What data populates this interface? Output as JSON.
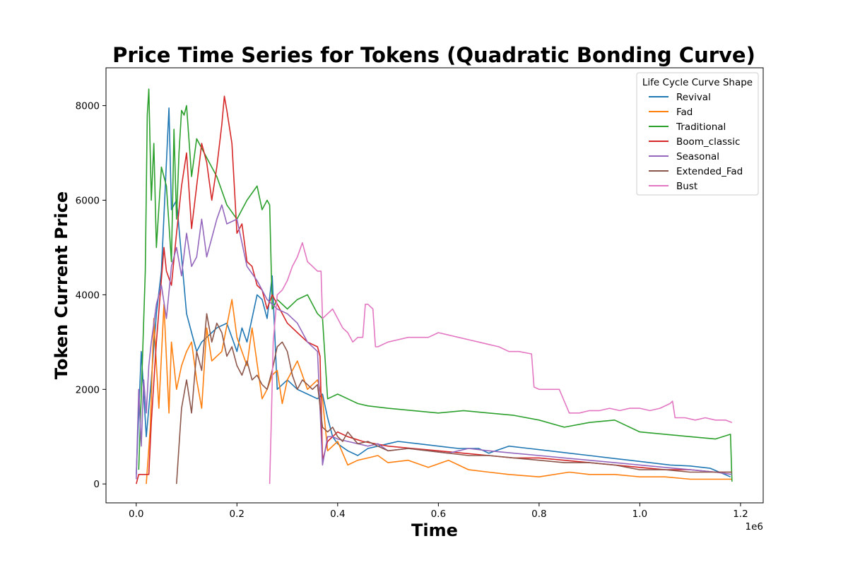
{
  "chart_data": {
    "type": "line",
    "title": "Price Time Series for Tokens (Quadratic Bonding Curve)",
    "xlabel": "Time",
    "ylabel": "Token Current Price",
    "x_offset_text": "1e6",
    "xlim": [
      -60000,
      1245000
    ],
    "ylim": [
      -400,
      8800
    ],
    "xticks": [
      0,
      200000,
      400000,
      600000,
      800000,
      1000000,
      1200000
    ],
    "xtick_labels": [
      "0.0",
      "0.2",
      "0.4",
      "0.6",
      "0.8",
      "1.0",
      "1.2"
    ],
    "yticks": [
      0,
      2000,
      4000,
      6000,
      8000
    ],
    "ytick_labels": [
      "0",
      "2000",
      "4000",
      "6000",
      "8000"
    ],
    "grid": false,
    "legend": {
      "title": "Life Cycle Curve Shape",
      "placement": "top-right"
    },
    "series": [
      {
        "name": "Revival",
        "color": "#1f77b4",
        "x": [
          0,
          10000,
          20000,
          30000,
          40000,
          50000,
          60000,
          65000,
          70000,
          80000,
          90000,
          100000,
          110000,
          120000,
          130000,
          150000,
          160000,
          180000,
          200000,
          210000,
          220000,
          240000,
          250000,
          260000,
          270000,
          280000,
          300000,
          320000,
          340000,
          360000,
          370000,
          380000,
          390000,
          400000,
          420000,
          440000,
          460000,
          480000,
          500000,
          520000,
          560000,
          600000,
          640000,
          680000,
          700000,
          740000,
          780000,
          820000,
          860000,
          900000,
          940000,
          980000,
          1020000,
          1060000,
          1100000,
          1140000,
          1180000
        ],
        "y": [
          200,
          2800,
          1000,
          2200,
          3600,
          4500,
          6800,
          7950,
          5800,
          6000,
          4800,
          3600,
          3200,
          2800,
          3000,
          3200,
          3300,
          3400,
          2800,
          3300,
          3000,
          4000,
          3900,
          3500,
          4400,
          2000,
          2200,
          2000,
          1900,
          1800,
          1900,
          1400,
          1000,
          850,
          700,
          600,
          750,
          800,
          850,
          900,
          850,
          800,
          750,
          750,
          650,
          800,
          750,
          700,
          650,
          600,
          550,
          500,
          450,
          400,
          380,
          330,
          150
        ]
      },
      {
        "name": "Fad",
        "color": "#ff7f0e",
        "x": [
          20000,
          28000,
          35000,
          45000,
          55000,
          65000,
          70000,
          80000,
          90000,
          100000,
          110000,
          120000,
          130000,
          140000,
          150000,
          170000,
          190000,
          200000,
          220000,
          230000,
          250000,
          260000,
          270000,
          280000,
          290000,
          300000,
          320000,
          340000,
          360000,
          370000,
          380000,
          400000,
          420000,
          440000,
          460000,
          480000,
          500000,
          540000,
          580000,
          620000,
          660000,
          700000,
          740000,
          800000,
          860000,
          900000,
          950000,
          1000000,
          1050000,
          1100000,
          1150000,
          1183000
        ],
        "y": [
          0,
          1200,
          3500,
          1600,
          3800,
          1500,
          3000,
          2000,
          2500,
          2800,
          3000,
          2200,
          1600,
          3300,
          2600,
          2800,
          3900,
          3100,
          2500,
          3300,
          1800,
          2000,
          2300,
          2400,
          1700,
          2200,
          2600,
          2000,
          2200,
          1800,
          700,
          900,
          400,
          500,
          550,
          600,
          450,
          500,
          350,
          500,
          300,
          250,
          200,
          150,
          250,
          200,
          200,
          150,
          150,
          100,
          100,
          100
        ]
      },
      {
        "name": "Traditional",
        "color": "#2ca02c",
        "x": [
          5000,
          12000,
          18000,
          22000,
          25000,
          30000,
          35000,
          40000,
          50000,
          60000,
          70000,
          75000,
          80000,
          85000,
          90000,
          95000,
          100000,
          110000,
          120000,
          140000,
          160000,
          180000,
          200000,
          220000,
          240000,
          250000,
          260000,
          265000,
          270000,
          280000,
          300000,
          320000,
          340000,
          360000,
          370000,
          380000,
          400000,
          420000,
          440000,
          460000,
          500000,
          550000,
          600000,
          650000,
          700000,
          750000,
          800000,
          850000,
          900000,
          950000,
          1000000,
          1050000,
          1100000,
          1150000,
          1180000,
          1183000
        ],
        "y": [
          300,
          2500,
          4500,
          7800,
          8350,
          6000,
          7200,
          5000,
          6700,
          6300,
          4700,
          7500,
          5600,
          7000,
          7900,
          7800,
          8000,
          6500,
          7300,
          6900,
          6500,
          5900,
          5600,
          6000,
          6300,
          5800,
          6000,
          5900,
          3700,
          3900,
          3700,
          3900,
          4000,
          3600,
          3500,
          1800,
          1900,
          1800,
          1700,
          1650,
          1600,
          1550,
          1500,
          1550,
          1500,
          1450,
          1350,
          1200,
          1300,
          1350,
          1100,
          1050,
          1000,
          950,
          1050,
          50
        ]
      },
      {
        "name": "Boom_classic",
        "color": "#d62728",
        "x": [
          0,
          5000,
          25000,
          30000,
          40000,
          55000,
          60000,
          70000,
          80000,
          90000,
          100000,
          110000,
          120000,
          130000,
          140000,
          150000,
          160000,
          170000,
          175000,
          180000,
          190000,
          200000,
          210000,
          220000,
          230000,
          240000,
          250000,
          260000,
          270000,
          280000,
          300000,
          320000,
          340000,
          360000,
          365000,
          370000,
          380000,
          400000,
          420000,
          450000,
          500000,
          550000,
          600000,
          650000,
          700000,
          750000,
          800000,
          850000,
          900000,
          950000,
          1000000,
          1050000,
          1100000,
          1150000,
          1183000
        ],
        "y": [
          0,
          200,
          200,
          1300,
          3000,
          5000,
          4500,
          4200,
          5300,
          6300,
          7000,
          5400,
          6300,
          7200,
          6800,
          6000,
          6700,
          7600,
          8200,
          7900,
          7200,
          5300,
          5500,
          4700,
          4600,
          4200,
          4100,
          3700,
          4000,
          3800,
          3400,
          3200,
          3000,
          2900,
          2700,
          500,
          900,
          1100,
          1000,
          900,
          800,
          750,
          700,
          650,
          600,
          550,
          550,
          500,
          450,
          400,
          350,
          300,
          300,
          250,
          250
        ]
      },
      {
        "name": "Seasonal",
        "color": "#9467bd",
        "x": [
          0,
          5000,
          10000,
          15000,
          20000,
          25000,
          30000,
          40000,
          50000,
          60000,
          70000,
          80000,
          90000,
          100000,
          110000,
          120000,
          130000,
          140000,
          150000,
          160000,
          170000,
          180000,
          200000,
          220000,
          240000,
          260000,
          280000,
          300000,
          320000,
          340000,
          360000,
          370000,
          380000,
          390000,
          400000,
          420000,
          440000,
          460000,
          480000,
          500000,
          540000,
          580000,
          620000,
          660000,
          700000,
          750000,
          800000,
          850000,
          900000,
          950000,
          1000000,
          1050000,
          1100000,
          1150000,
          1183000
        ],
        "y": [
          100,
          2000,
          800,
          2200,
          1500,
          2500,
          3000,
          3800,
          4200,
          3500,
          4600,
          5000,
          4400,
          5300,
          4600,
          4800,
          5600,
          4800,
          5200,
          5600,
          5900,
          5500,
          5600,
          4600,
          4300,
          3900,
          3700,
          3600,
          3400,
          3000,
          2800,
          400,
          1000,
          1000,
          950,
          900,
          850,
          800,
          850,
          700,
          750,
          700,
          650,
          750,
          700,
          650,
          600,
          550,
          500,
          450,
          400,
          350,
          300,
          250,
          200
        ]
      },
      {
        "name": "Extended_Fad",
        "color": "#8c564b",
        "x": [
          80000,
          85000,
          90000,
          100000,
          110000,
          120000,
          130000,
          140000,
          150000,
          160000,
          170000,
          180000,
          190000,
          200000,
          210000,
          220000,
          230000,
          240000,
          250000,
          260000,
          270000,
          280000,
          290000,
          300000,
          310000,
          320000,
          330000,
          340000,
          350000,
          360000,
          370000,
          380000,
          390000,
          400000,
          410000,
          420000,
          440000,
          460000,
          480000,
          500000,
          540000,
          580000,
          620000,
          660000,
          700000,
          750000,
          800000,
          850000,
          900000,
          950000,
          1000000,
          1050000,
          1100000,
          1150000,
          1183000
        ],
        "y": [
          0,
          800,
          1600,
          2200,
          1500,
          2800,
          2400,
          3600,
          3000,
          3400,
          3200,
          2700,
          2900,
          2500,
          2300,
          2600,
          2200,
          2300,
          2100,
          2000,
          2400,
          2900,
          3000,
          2800,
          2300,
          2000,
          2200,
          2100,
          2000,
          2100,
          1200,
          1100,
          1200,
          1000,
          900,
          1100,
          850,
          900,
          800,
          700,
          750,
          700,
          650,
          600,
          600,
          550,
          500,
          450,
          450,
          400,
          300,
          300,
          250,
          250,
          250
        ]
      },
      {
        "name": "Bust",
        "color": "#e377c2",
        "x": [
          265000,
          268000,
          272000,
          280000,
          290000,
          300000,
          310000,
          320000,
          330000,
          340000,
          350000,
          360000,
          367000,
          370000,
          380000,
          390000,
          400000,
          410000,
          420000,
          430000,
          440000,
          450000,
          455000,
          460000,
          470000,
          475000,
          480000,
          500000,
          520000,
          540000,
          560000,
          580000,
          600000,
          620000,
          640000,
          660000,
          680000,
          700000,
          720000,
          740000,
          760000,
          785000,
          790000,
          800000,
          820000,
          840000,
          860000,
          880000,
          900000,
          920000,
          940000,
          960000,
          980000,
          1000000,
          1020000,
          1040000,
          1060000,
          1065000,
          1070000,
          1090000,
          1110000,
          1130000,
          1150000,
          1170000,
          1183000
        ],
        "y": [
          0,
          1200,
          3000,
          4000,
          4100,
          4300,
          4600,
          4800,
          5100,
          4700,
          4600,
          4500,
          4500,
          3500,
          3600,
          3700,
          3500,
          3300,
          3200,
          3000,
          3100,
          3100,
          3800,
          3800,
          3700,
          2900,
          2900,
          3000,
          3050,
          3100,
          3100,
          3100,
          3200,
          3150,
          3100,
          3050,
          3000,
          2950,
          2900,
          2800,
          2800,
          2750,
          2050,
          2000,
          2000,
          2000,
          1500,
          1500,
          1550,
          1550,
          1600,
          1550,
          1600,
          1600,
          1550,
          1600,
          1700,
          1750,
          1400,
          1400,
          1350,
          1400,
          1350,
          1350,
          1300
        ]
      }
    ]
  }
}
